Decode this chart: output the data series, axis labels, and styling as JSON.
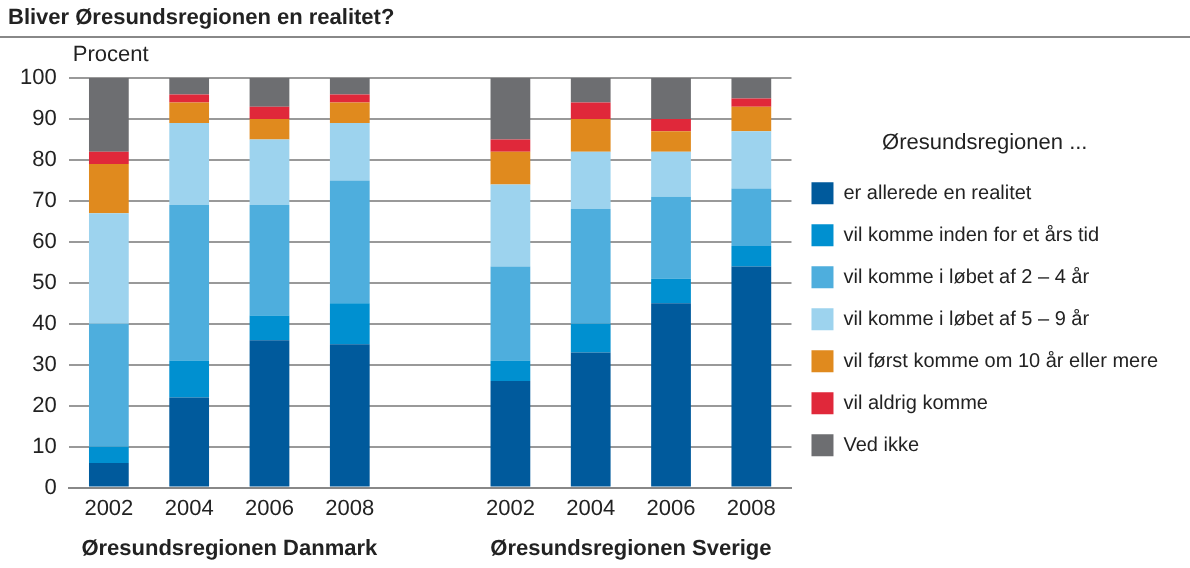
{
  "chart_data": {
    "type": "bar",
    "title": "Bliver Øresundsregionen en realitet?",
    "ylabel": "Procent",
    "legend_title": "Øresundsregionen ...",
    "annotations": [
      "Øresundsregionen Danmark",
      "Øresundsregionen Sverige"
    ],
    "categories": [
      "2002",
      "2004",
      "2006",
      "2008",
      null,
      "2002",
      "2004",
      "2006",
      "2008"
    ],
    "stacked": true,
    "ylim": [
      0,
      100
    ],
    "yticks": [
      0,
      10,
      20,
      30,
      40,
      50,
      60,
      70,
      80,
      90,
      100
    ],
    "grid": "y",
    "legend": "right",
    "series": [
      {
        "name": "er allerede en realitet",
        "color": "#005a9c",
        "values": [
          6,
          22,
          36,
          35,
          null,
          26,
          33,
          45,
          54
        ]
      },
      {
        "name": "vil komme inden for et års tid",
        "color": "#0090d0",
        "values": [
          4,
          9,
          6,
          10,
          null,
          5,
          7,
          6,
          5
        ]
      },
      {
        "name": "vil komme i løbet af 2 – 4 år",
        "color": "#4eaedd",
        "values": [
          30,
          38,
          27,
          30,
          null,
          23,
          28,
          20,
          14
        ]
      },
      {
        "name": "vil komme i løbet af 5 – 9 år",
        "color": "#9dd3ee",
        "values": [
          27,
          20,
          16,
          14,
          null,
          20,
          14,
          11,
          14
        ]
      },
      {
        "name": "vil først komme om 10 år eller mere",
        "color": "#e08a1e",
        "values": [
          12,
          5,
          5,
          5,
          null,
          8,
          8,
          5,
          6
        ]
      },
      {
        "name": "vil aldrig komme",
        "color": "#e0283a",
        "values": [
          3,
          2,
          3,
          2,
          null,
          3,
          4,
          3,
          2
        ]
      },
      {
        "name": "Ved ikke",
        "color": "#6d6e71",
        "values": [
          18,
          4,
          7,
          4,
          null,
          15,
          6,
          10,
          5
        ]
      }
    ]
  }
}
